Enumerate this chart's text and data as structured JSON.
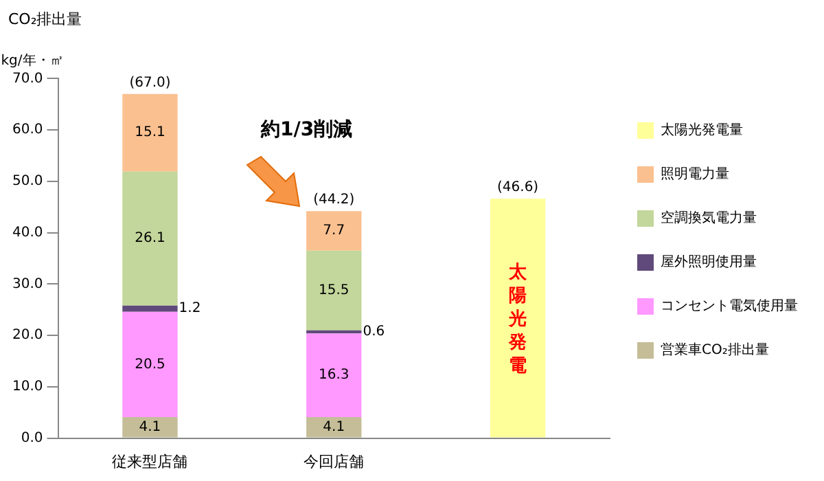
{
  "chart_data": {
    "type": "bar",
    "stacked": true,
    "title": "CO₂排出量",
    "ylabel": "kg/年・㎡",
    "categories": [
      "従来型店舗",
      "今回店舗",
      null
    ],
    "series": [
      {
        "name": "営業車CO₂排出量",
        "color": "#c4bd97",
        "values": [
          4.1,
          4.1,
          null
        ],
        "value_labels": [
          "4.1",
          "4.1",
          null
        ]
      },
      {
        "name": "コンセント電気使用量",
        "color": "#ff99ff",
        "values": [
          20.5,
          16.3,
          null
        ],
        "value_labels": [
          "20.5",
          "16.3",
          null
        ]
      },
      {
        "name": "屋外照明使用量",
        "color": "#604a7b",
        "values": [
          1.2,
          0.6,
          null
        ],
        "value_labels": [
          "1.2",
          "0.6",
          null
        ]
      },
      {
        "name": "空調換気電力量",
        "color": "#c3d69b",
        "values": [
          26.1,
          15.5,
          null
        ],
        "value_labels": [
          "26.1",
          "15.5",
          null
        ]
      },
      {
        "name": "照明電力量",
        "color": "#fac090",
        "values": [
          15.1,
          7.7,
          null
        ],
        "value_labels": [
          "15.1",
          "7.7",
          null
        ]
      },
      {
        "name": "太陽光発電量",
        "color": "#ffff99",
        "values": [
          null,
          null,
          46.6
        ],
        "value_labels": [
          null,
          null,
          null
        ]
      }
    ],
    "totals": [
      "(67.0)",
      "(44.2)",
      "(46.6)"
    ],
    "ylim": [
      0,
      70
    ],
    "yticks": [
      {
        "value": 0,
        "label": "0.0"
      },
      {
        "value": 10,
        "label": "10.0"
      },
      {
        "value": 20,
        "label": "20.0"
      },
      {
        "value": 30,
        "label": "30.0"
      },
      {
        "value": 40,
        "label": "40.0"
      },
      {
        "value": 50,
        "label": "50.0"
      },
      {
        "value": 60,
        "label": "60.0"
      },
      {
        "value": 70,
        "label": "70.0"
      }
    ],
    "grid": false,
    "legend": "right",
    "annotations": [
      "約1/3削減",
      "太陽光発電"
    ]
  }
}
